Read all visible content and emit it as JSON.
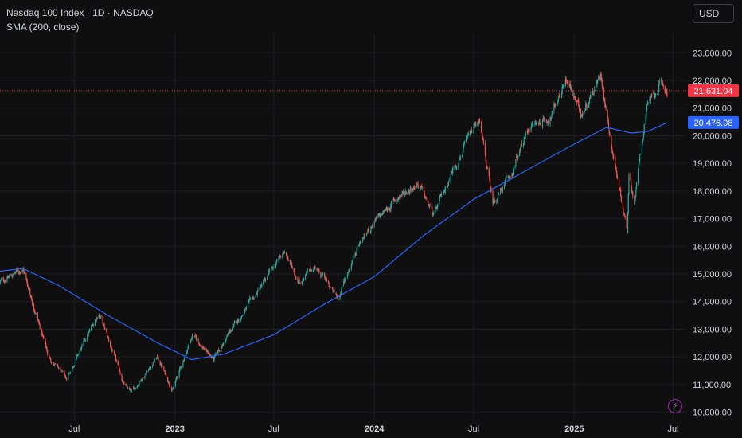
{
  "header": {
    "title": "Nasdaq 100 Index · 1D · NASDAQ",
    "indicator": "SMA (200, close)"
  },
  "currency_button": "USD",
  "flash_icon": "lightning-icon",
  "colors": {
    "background": "#0f0f0f",
    "grid": "#1c1e24",
    "up": "#26a69a",
    "down": "#ef5350",
    "sma": "#2962ff",
    "last_price_label": "#f23645",
    "sma_label": "#2962ff",
    "axis_text": "#d1d4dc"
  },
  "chart_data": {
    "type": "candlestick",
    "grid": true,
    "y_axis": {
      "position": "right",
      "ticks": [
        "10,000.00",
        "11,000.00",
        "12,000.00",
        "13,000.00",
        "14,000.00",
        "15,000.00",
        "16,000.00",
        "17,000.00",
        "18,000.00",
        "19,000.00",
        "20,000.00",
        "21,000.00",
        "22,000.00",
        "23,000.00"
      ],
      "ylim": [
        9700,
        23700
      ]
    },
    "x_axis": {
      "ticks": [
        {
          "label": "Jul",
          "date": "2022-07-01",
          "bold": false
        },
        {
          "label": "2023",
          "date": "2023-01-01",
          "bold": true
        },
        {
          "label": "Jul",
          "date": "2023-07-01",
          "bold": false
        },
        {
          "label": "2024",
          "date": "2024-01-01",
          "bold": true
        },
        {
          "label": "Jul",
          "date": "2024-07-01",
          "bold": false
        },
        {
          "label": "2025",
          "date": "2025-01-01",
          "bold": true
        },
        {
          "label": "Jul",
          "date": "2025-07-01",
          "bold": false
        }
      ],
      "xlim": [
        "2022-02-15",
        "2025-07-25"
      ]
    },
    "price_series": {
      "name": "Nasdaq 100 Index",
      "last_value": 21631.04,
      "last_label": "21,631.04",
      "approx_close_path": [
        {
          "date": "2022-02-15",
          "close": 14700
        },
        {
          "date": "2022-03-29",
          "close": 15200
        },
        {
          "date": "2022-05-15",
          "close": 12000
        },
        {
          "date": "2022-06-16",
          "close": 11200
        },
        {
          "date": "2022-08-15",
          "close": 13600
        },
        {
          "date": "2022-09-30",
          "close": 11000
        },
        {
          "date": "2022-10-13",
          "close": 10700
        },
        {
          "date": "2022-11-30",
          "close": 12000
        },
        {
          "date": "2022-12-28",
          "close": 10800
        },
        {
          "date": "2023-02-02",
          "close": 12800
        },
        {
          "date": "2023-03-13",
          "close": 11900
        },
        {
          "date": "2023-04-15",
          "close": 13000
        },
        {
          "date": "2023-05-31",
          "close": 14300
        },
        {
          "date": "2023-07-19",
          "close": 15800
        },
        {
          "date": "2023-08-18",
          "close": 14700
        },
        {
          "date": "2023-09-15",
          "close": 15300
        },
        {
          "date": "2023-10-26",
          "close": 14100
        },
        {
          "date": "2023-12-01",
          "close": 16000
        },
        {
          "date": "2023-12-29",
          "close": 16800
        },
        {
          "date": "2024-02-15",
          "close": 17800
        },
        {
          "date": "2024-03-21",
          "close": 18300
        },
        {
          "date": "2024-04-19",
          "close": 17100
        },
        {
          "date": "2024-05-24",
          "close": 18800
        },
        {
          "date": "2024-07-10",
          "close": 20600
        },
        {
          "date": "2024-08-05",
          "close": 17600
        },
        {
          "date": "2024-09-06",
          "close": 18500
        },
        {
          "date": "2024-10-10",
          "close": 20300
        },
        {
          "date": "2024-11-20",
          "close": 20700
        },
        {
          "date": "2024-12-16",
          "close": 22100
        },
        {
          "date": "2025-01-13",
          "close": 20800
        },
        {
          "date": "2025-02-19",
          "close": 22200
        },
        {
          "date": "2025-03-13",
          "close": 19300
        },
        {
          "date": "2025-04-08",
          "close": 16600
        },
        {
          "date": "2025-04-11",
          "close": 18700
        },
        {
          "date": "2025-04-21",
          "close": 17600
        },
        {
          "date": "2025-05-13",
          "close": 21000
        },
        {
          "date": "2025-06-06",
          "close": 21800
        },
        {
          "date": "2025-06-20",
          "close": 21631
        }
      ]
    },
    "sma_series": {
      "name": "SMA (200, close)",
      "last_value": 20476.98,
      "last_label": "20,476.98",
      "approx_path": [
        {
          "date": "2022-02-15",
          "value": 15100
        },
        {
          "date": "2022-03-29",
          "value": 15200
        },
        {
          "date": "2022-06-01",
          "value": 14600
        },
        {
          "date": "2022-09-01",
          "value": 13500
        },
        {
          "date": "2022-12-01",
          "value": 12500
        },
        {
          "date": "2023-02-01",
          "value": 11900
        },
        {
          "date": "2023-04-01",
          "value": 12100
        },
        {
          "date": "2023-07-01",
          "value": 12800
        },
        {
          "date": "2023-10-01",
          "value": 13900
        },
        {
          "date": "2024-01-01",
          "value": 14900
        },
        {
          "date": "2024-04-01",
          "value": 16400
        },
        {
          "date": "2024-07-01",
          "value": 17700
        },
        {
          "date": "2024-10-01",
          "value": 18700
        },
        {
          "date": "2025-01-01",
          "value": 19700
        },
        {
          "date": "2025-03-01",
          "value": 20300
        },
        {
          "date": "2025-04-15",
          "value": 20100
        },
        {
          "date": "2025-05-15",
          "value": 20150
        },
        {
          "date": "2025-06-20",
          "value": 20477
        }
      ]
    }
  }
}
